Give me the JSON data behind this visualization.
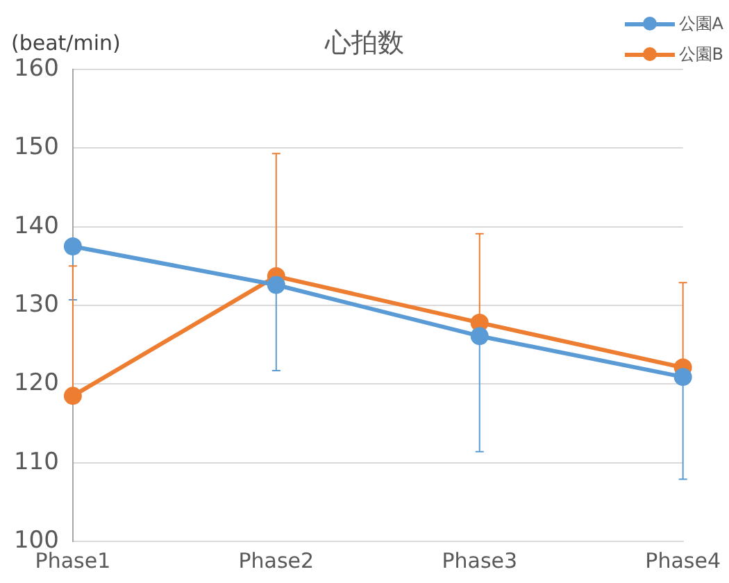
{
  "chart_data": {
    "type": "line",
    "title": "心拍数",
    "ylabel": "(beat/min)",
    "categories": [
      "Phase1",
      "Phase2",
      "Phase3",
      "Phase4"
    ],
    "series": [
      {
        "name": "公園A",
        "color": "#5b9bd5",
        "values": [
          137.5,
          132.6,
          126.1,
          120.9
        ],
        "errors": [
          [
            130.7,
            137.5
          ],
          [
            121.7,
            132.6
          ],
          [
            111.4,
            126.1
          ],
          [
            107.9,
            120.9
          ]
        ]
      },
      {
        "name": "公園B",
        "color": "#ed7d31",
        "values": [
          118.5,
          133.7,
          127.8,
          122.1
        ],
        "errors": [
          [
            118.5,
            135.0
          ],
          [
            133.7,
            149.3
          ],
          [
            127.8,
            139.1
          ],
          [
            122.1,
            132.9
          ]
        ]
      }
    ],
    "ylim": [
      100,
      160
    ],
    "yticks": [
      100,
      110,
      120,
      130,
      140,
      150,
      160
    ],
    "grid": "y",
    "legend": "top right",
    "marker": "circle",
    "line_style": "solid"
  }
}
